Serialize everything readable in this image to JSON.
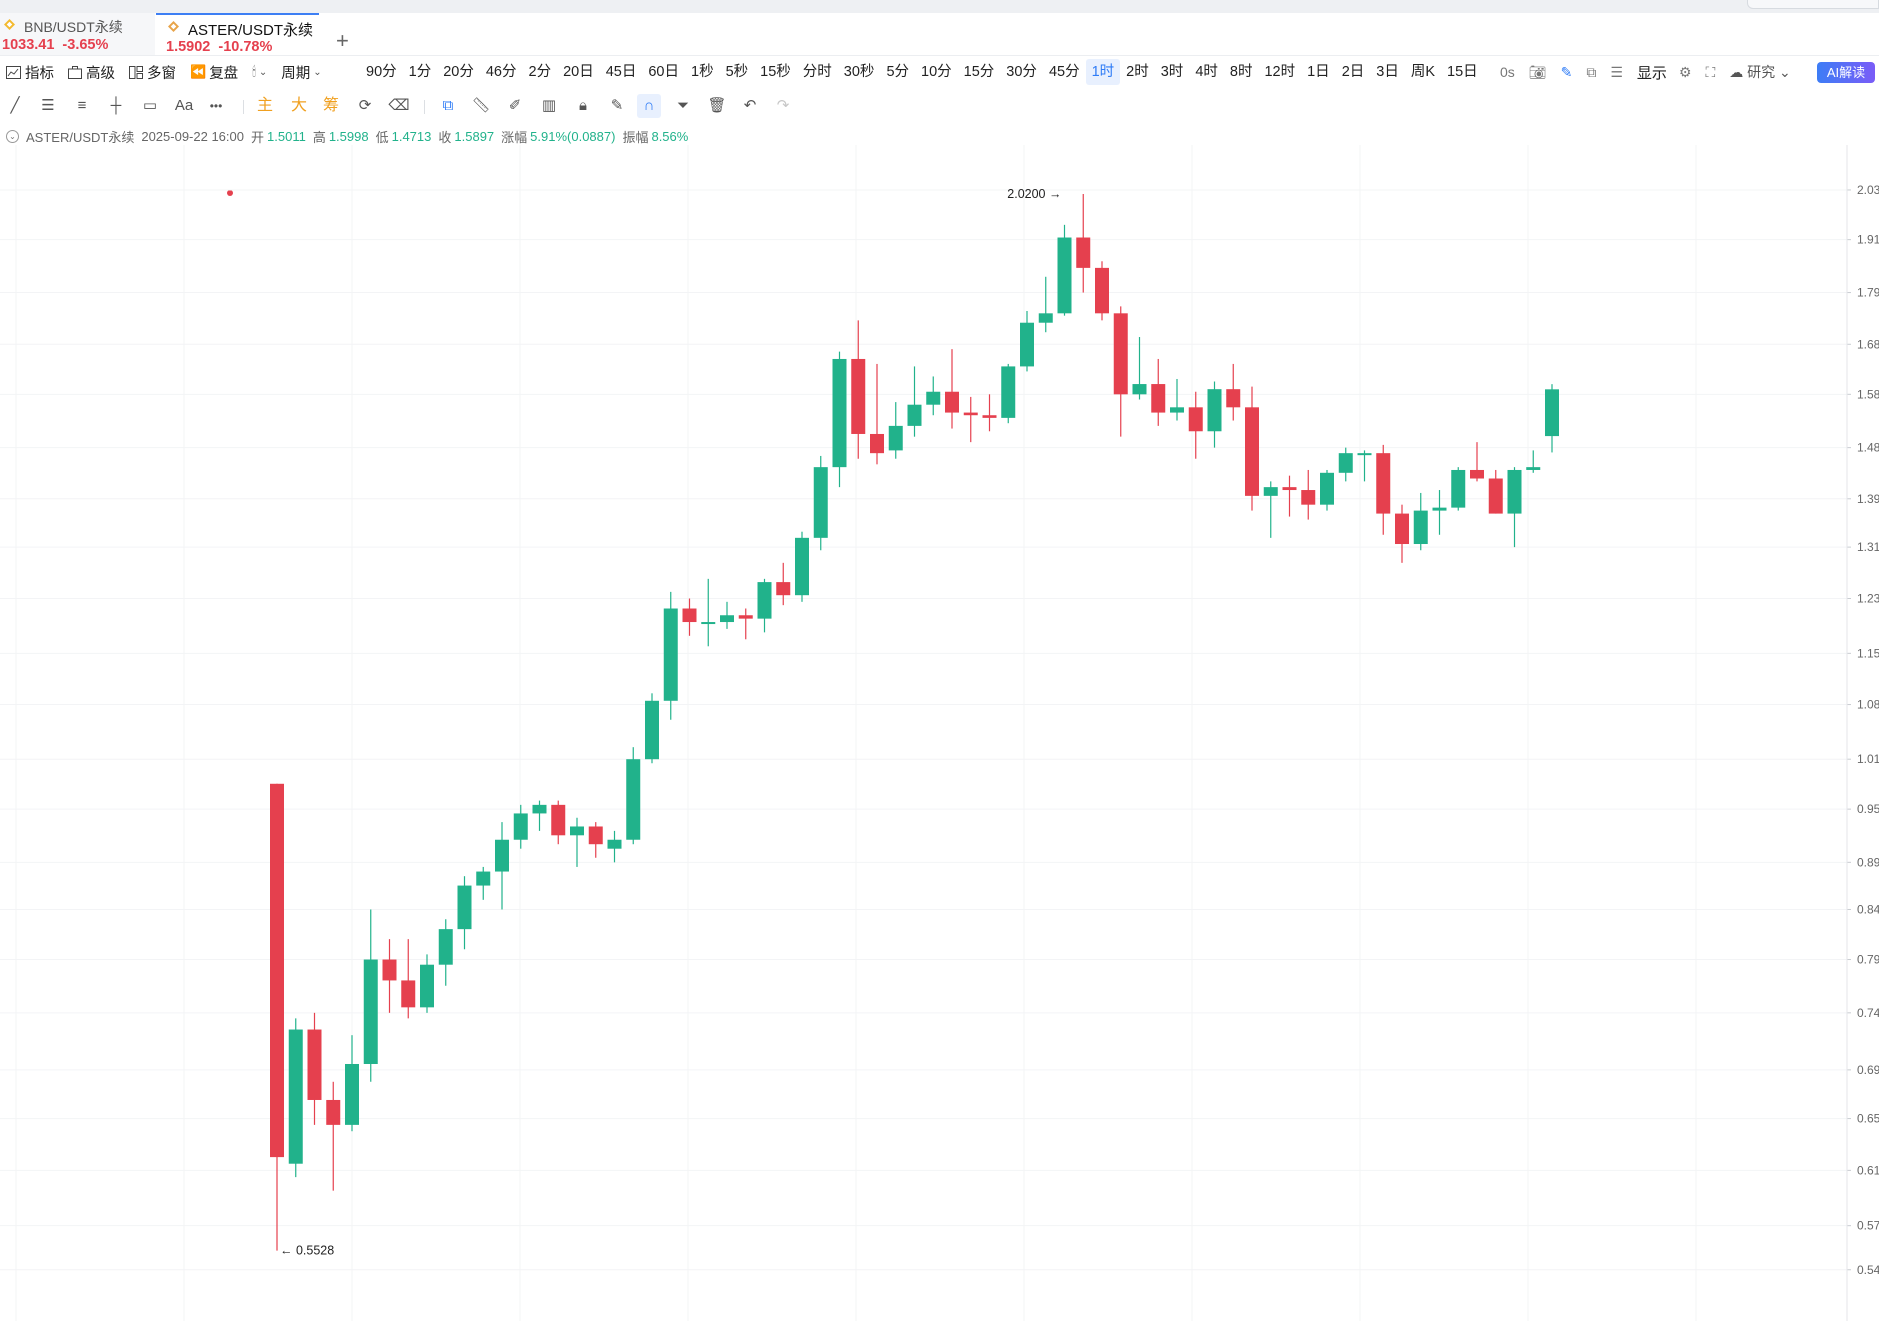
{
  "tabs": [
    {
      "name": "BNB/USDT永续",
      "price": "1033.41",
      "change": "-3.65%"
    },
    {
      "name": "ASTER/USDT永续",
      "price": "1.5902",
      "change": "-10.78%"
    }
  ],
  "add_tab": "+",
  "toolbar": {
    "indicators": "指标",
    "advanced": "高级",
    "multi_window": "多窗",
    "replay": "复盘",
    "period_menu": "周期",
    "periods": [
      "90分",
      "1分",
      "20分",
      "46分",
      "2分",
      "20日",
      "45日",
      "60日",
      "1秒",
      "5秒",
      "15秒",
      "分时",
      "30秒",
      "5分",
      "10分",
      "15分",
      "30分",
      "45分",
      "1时",
      "2时",
      "3时",
      "4时",
      "8时",
      "12时",
      "1日",
      "2日",
      "3日",
      "周K",
      "15日"
    ],
    "active_period": "1时",
    "countdown": "0s",
    "display": "显示",
    "research": "研究",
    "ai": "AI解读"
  },
  "drawing_tools": {
    "text_tool": "Aa",
    "more": "•••",
    "main": "主",
    "big": "大",
    "chips": "筹"
  },
  "ohlc": {
    "symbol": "ASTER/USDT永续",
    "datetime": "2025-09-22 16:00",
    "open_label": "开",
    "open": "1.5011",
    "high_label": "高",
    "high": "1.5998",
    "low_label": "低",
    "low": "1.4713",
    "close_label": "收",
    "close": "1.5897",
    "change_label": "涨幅",
    "change": "5.91%(0.0887)",
    "amplitude_label": "振幅",
    "amplitude": "8.56%"
  },
  "chart_data": {
    "type": "candlestick",
    "up_color": "#21b28b",
    "down_color": "#e5404e",
    "y_axis_ticks": [
      "2.03",
      "1.91",
      "1.79",
      "1.68",
      "1.58",
      "1.48",
      "1.39",
      "1.31",
      "1.23",
      "1.15",
      "1.08",
      "1.01",
      "0.95",
      "0.89",
      "0.84",
      "0.79",
      "0.74",
      "0.69",
      "0.65",
      "0.61",
      "0.57",
      "0.54"
    ],
    "log_scale": true,
    "ylim": [
      0.53,
      2.06
    ],
    "annotations": [
      {
        "text": "2.0200",
        "candle_index": 42,
        "value": 2.02
      },
      {
        "text": "0.5528",
        "candle_index": 0,
        "value": 0.5528
      }
    ],
    "candles": [
      {
        "o": 0.98,
        "h": 0.98,
        "l": 0.5528,
        "c": 0.62
      },
      {
        "o": 0.615,
        "h": 0.735,
        "l": 0.605,
        "c": 0.725
      },
      {
        "o": 0.725,
        "h": 0.74,
        "l": 0.645,
        "c": 0.665
      },
      {
        "o": 0.665,
        "h": 0.68,
        "l": 0.595,
        "c": 0.645
      },
      {
        "o": 0.645,
        "h": 0.72,
        "l": 0.64,
        "c": 0.695
      },
      {
        "o": 0.695,
        "h": 0.84,
        "l": 0.68,
        "c": 0.79
      },
      {
        "o": 0.79,
        "h": 0.81,
        "l": 0.74,
        "c": 0.77
      },
      {
        "o": 0.77,
        "h": 0.81,
        "l": 0.735,
        "c": 0.745
      },
      {
        "o": 0.745,
        "h": 0.795,
        "l": 0.74,
        "c": 0.785
      },
      {
        "o": 0.785,
        "h": 0.83,
        "l": 0.765,
        "c": 0.82
      },
      {
        "o": 0.82,
        "h": 0.875,
        "l": 0.8,
        "c": 0.865
      },
      {
        "o": 0.865,
        "h": 0.885,
        "l": 0.85,
        "c": 0.88
      },
      {
        "o": 0.88,
        "h": 0.935,
        "l": 0.84,
        "c": 0.915
      },
      {
        "o": 0.915,
        "h": 0.955,
        "l": 0.905,
        "c": 0.945
      },
      {
        "o": 0.945,
        "h": 0.96,
        "l": 0.925,
        "c": 0.955
      },
      {
        "o": 0.955,
        "h": 0.96,
        "l": 0.91,
        "c": 0.92
      },
      {
        "o": 0.92,
        "h": 0.94,
        "l": 0.885,
        "c": 0.93
      },
      {
        "o": 0.93,
        "h": 0.935,
        "l": 0.895,
        "c": 0.91
      },
      {
        "o": 0.905,
        "h": 0.925,
        "l": 0.89,
        "c": 0.915
      },
      {
        "o": 0.915,
        "h": 1.025,
        "l": 0.91,
        "c": 1.01
      },
      {
        "o": 1.01,
        "h": 1.095,
        "l": 1.005,
        "c": 1.085
      },
      {
        "o": 1.085,
        "h": 1.24,
        "l": 1.06,
        "c": 1.215
      },
      {
        "o": 1.215,
        "h": 1.23,
        "l": 1.175,
        "c": 1.195
      },
      {
        "o": 1.195,
        "h": 1.26,
        "l": 1.16,
        "c": 1.195
      },
      {
        "o": 1.195,
        "h": 1.225,
        "l": 1.185,
        "c": 1.205
      },
      {
        "o": 1.205,
        "h": 1.215,
        "l": 1.17,
        "c": 1.2
      },
      {
        "o": 1.2,
        "h": 1.26,
        "l": 1.18,
        "c": 1.255
      },
      {
        "o": 1.255,
        "h": 1.285,
        "l": 1.22,
        "c": 1.235
      },
      {
        "o": 1.235,
        "h": 1.335,
        "l": 1.225,
        "c": 1.325
      },
      {
        "o": 1.325,
        "h": 1.465,
        "l": 1.305,
        "c": 1.445
      },
      {
        "o": 1.445,
        "h": 1.665,
        "l": 1.41,
        "c": 1.65
      },
      {
        "o": 1.65,
        "h": 1.73,
        "l": 1.46,
        "c": 1.505
      },
      {
        "o": 1.505,
        "h": 1.64,
        "l": 1.45,
        "c": 1.47
      },
      {
        "o": 1.475,
        "h": 1.565,
        "l": 1.46,
        "c": 1.52
      },
      {
        "o": 1.52,
        "h": 1.635,
        "l": 1.5,
        "c": 1.56
      },
      {
        "o": 1.56,
        "h": 1.615,
        "l": 1.54,
        "c": 1.585
      },
      {
        "o": 1.585,
        "h": 1.67,
        "l": 1.515,
        "c": 1.545
      },
      {
        "o": 1.545,
        "h": 1.575,
        "l": 1.49,
        "c": 1.54
      },
      {
        "o": 1.54,
        "h": 1.58,
        "l": 1.51,
        "c": 1.535
      },
      {
        "o": 1.535,
        "h": 1.64,
        "l": 1.525,
        "c": 1.635
      },
      {
        "o": 1.635,
        "h": 1.75,
        "l": 1.625,
        "c": 1.725
      },
      {
        "o": 1.725,
        "h": 1.825,
        "l": 1.705,
        "c": 1.745
      },
      {
        "o": 1.745,
        "h": 1.945,
        "l": 1.74,
        "c": 1.915
      },
      {
        "o": 1.915,
        "h": 2.02,
        "l": 1.79,
        "c": 1.845
      },
      {
        "o": 1.845,
        "h": 1.86,
        "l": 1.73,
        "c": 1.745
      },
      {
        "o": 1.745,
        "h": 1.76,
        "l": 1.5,
        "c": 1.58
      },
      {
        "o": 1.58,
        "h": 1.695,
        "l": 1.57,
        "c": 1.6
      },
      {
        "o": 1.6,
        "h": 1.65,
        "l": 1.52,
        "c": 1.545
      },
      {
        "o": 1.545,
        "h": 1.61,
        "l": 1.53,
        "c": 1.555
      },
      {
        "o": 1.555,
        "h": 1.585,
        "l": 1.46,
        "c": 1.51
      },
      {
        "o": 1.51,
        "h": 1.605,
        "l": 1.48,
        "c": 1.59
      },
      {
        "o": 1.59,
        "h": 1.64,
        "l": 1.53,
        "c": 1.555
      },
      {
        "o": 1.555,
        "h": 1.595,
        "l": 1.37,
        "c": 1.395
      },
      {
        "o": 1.395,
        "h": 1.42,
        "l": 1.325,
        "c": 1.41
      },
      {
        "o": 1.41,
        "h": 1.43,
        "l": 1.36,
        "c": 1.405
      },
      {
        "o": 1.405,
        "h": 1.44,
        "l": 1.355,
        "c": 1.38
      },
      {
        "o": 1.38,
        "h": 1.44,
        "l": 1.37,
        "c": 1.435
      },
      {
        "o": 1.435,
        "h": 1.48,
        "l": 1.42,
        "c": 1.47
      },
      {
        "o": 1.47,
        "h": 1.475,
        "l": 1.42,
        "c": 1.47
      },
      {
        "o": 1.47,
        "h": 1.485,
        "l": 1.33,
        "c": 1.365
      },
      {
        "o": 1.365,
        "h": 1.38,
        "l": 1.285,
        "c": 1.315
      },
      {
        "o": 1.315,
        "h": 1.4,
        "l": 1.305,
        "c": 1.37
      },
      {
        "o": 1.37,
        "h": 1.405,
        "l": 1.33,
        "c": 1.375
      },
      {
        "o": 1.375,
        "h": 1.445,
        "l": 1.37,
        "c": 1.44
      },
      {
        "o": 1.44,
        "h": 1.49,
        "l": 1.42,
        "c": 1.425
      },
      {
        "o": 1.425,
        "h": 1.44,
        "l": 1.365,
        "c": 1.365
      },
      {
        "o": 1.365,
        "h": 1.445,
        "l": 1.31,
        "c": 1.44
      },
      {
        "o": 1.44,
        "h": 1.475,
        "l": 1.435,
        "c": 1.445
      },
      {
        "o": 1.5011,
        "h": 1.5998,
        "l": 1.4713,
        "c": 1.5897
      }
    ]
  }
}
